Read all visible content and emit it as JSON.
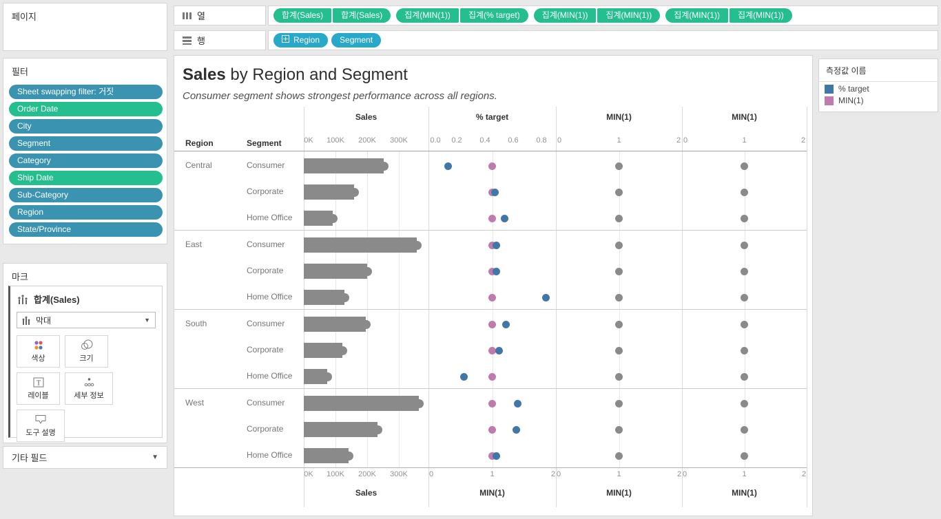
{
  "sidebar": {
    "pages": {
      "title": "페이지"
    },
    "filters": {
      "title": "필터",
      "pills": [
        {
          "label": "Sheet swapping filter: 거짓",
          "kind": "dimension"
        },
        {
          "label": "Order Date",
          "kind": "date"
        },
        {
          "label": "City",
          "kind": "dimension"
        },
        {
          "label": "Segment",
          "kind": "dimension"
        },
        {
          "label": "Category",
          "kind": "dimension"
        },
        {
          "label": "Ship Date",
          "kind": "date"
        },
        {
          "label": "Sub-Category",
          "kind": "dimension"
        },
        {
          "label": "Region",
          "kind": "dimension"
        },
        {
          "label": "State/Province",
          "kind": "dimension"
        }
      ]
    },
    "marks": {
      "title": "마크",
      "card_title": "합계(Sales)",
      "mark_type": "막대",
      "buttons": [
        {
          "id": "color",
          "label": "색상"
        },
        {
          "id": "size",
          "label": "크기"
        },
        {
          "id": "label",
          "label": "레이블"
        },
        {
          "id": "detail",
          "label": "세부 정보"
        },
        {
          "id": "tooltip",
          "label": "도구 설명"
        }
      ]
    },
    "other_fields": {
      "title": "기타 필드"
    }
  },
  "shelves": {
    "columns_label": "열",
    "rows_label": "행",
    "columns_pills": [
      "합계(Sales)",
      "합계(Sales)",
      "집계(MIN(1))",
      "집계(% target)",
      "집계(MIN(1))",
      "집계(MIN(1))",
      "집계(MIN(1))",
      "집계(MIN(1))"
    ],
    "rows_pills": [
      {
        "label": "Region",
        "expand": true
      },
      {
        "label": "Segment",
        "expand": false
      }
    ]
  },
  "legend": {
    "title": "측정값 이름",
    "items": [
      {
        "label": "% target",
        "color": "#4077a8"
      },
      {
        "label": "MIN(1)",
        "color": "#bf7bad"
      }
    ]
  },
  "colors": {
    "green_pill": "#25be8f",
    "filter_pill": "#3a93b1",
    "rows_pill": "#28a9c9",
    "target_blue": "#4077a8",
    "min1_pink": "#bf7bad",
    "gray_mark": "#8a8a8a"
  },
  "chart_data": {
    "type": "table",
    "title_emph": "Sales",
    "title_rest": " by Region and Segment",
    "subtitle": "Consumer segment shows strongest performance across all regions.",
    "row_headers": [
      "Region",
      "Segment"
    ],
    "panels": [
      {
        "title": "Sales",
        "bottom_title": "Sales",
        "mark": "bar",
        "top_ticks": [
          "0K",
          "100K",
          "200K",
          "300K"
        ],
        "bottom_ticks": [
          "0K",
          "100K",
          "200K",
          "300K"
        ],
        "top_range": [
          0,
          393000
        ],
        "grid": true
      },
      {
        "title": "% target",
        "bottom_title": "MIN(1)",
        "mark": "dual-dot",
        "top_ticks": [
          "0.0",
          "0.2",
          "0.4",
          "0.6",
          "0.8"
        ],
        "bottom_ticks": [
          "0",
          "1",
          "2"
        ],
        "top_range": [
          0,
          0.9
        ],
        "bottom_range": [
          0,
          2
        ]
      },
      {
        "title": "MIN(1)",
        "bottom_title": "MIN(1)",
        "mark": "gray-dot",
        "top_ticks": [
          "0",
          "1",
          "2"
        ],
        "bottom_ticks": [
          "0",
          "1",
          "2"
        ],
        "top_range": [
          0,
          2
        ]
      },
      {
        "title": "MIN(1)",
        "bottom_title": "MIN(1)",
        "mark": "gray-dot",
        "top_ticks": [
          "0",
          "1",
          "2"
        ],
        "bottom_ticks": [
          "0",
          "1",
          "2"
        ],
        "top_range": [
          0,
          2
        ]
      }
    ],
    "rows": [
      {
        "region": "Central",
        "segment": "Consumer",
        "sales": 252000,
        "pct_target": 0.14,
        "min1": 1
      },
      {
        "region": "Central",
        "segment": "Corporate",
        "sales": 158000,
        "pct_target": 0.47,
        "min1": 1
      },
      {
        "region": "Central",
        "segment": "Home Office",
        "sales": 91000,
        "pct_target": 0.54,
        "min1": 1
      },
      {
        "region": "East",
        "segment": "Consumer",
        "sales": 357000,
        "pct_target": 0.48,
        "min1": 1
      },
      {
        "region": "East",
        "segment": "Corporate",
        "sales": 200000,
        "pct_target": 0.48,
        "min1": 1
      },
      {
        "region": "East",
        "segment": "Home Office",
        "sales": 129000,
        "pct_target": 0.83,
        "min1": 1
      },
      {
        "region": "South",
        "segment": "Consumer",
        "sales": 196000,
        "pct_target": 0.55,
        "min1": 1
      },
      {
        "region": "South",
        "segment": "Corporate",
        "sales": 122000,
        "pct_target": 0.5,
        "min1": 1
      },
      {
        "region": "South",
        "segment": "Home Office",
        "sales": 74000,
        "pct_target": 0.25,
        "min1": 1
      },
      {
        "region": "West",
        "segment": "Consumer",
        "sales": 364000,
        "pct_target": 0.63,
        "min1": 1
      },
      {
        "region": "West",
        "segment": "Corporate",
        "sales": 232000,
        "pct_target": 0.62,
        "min1": 1
      },
      {
        "region": "West",
        "segment": "Home Office",
        "sales": 141000,
        "pct_target": 0.48,
        "min1": 1
      }
    ]
  }
}
